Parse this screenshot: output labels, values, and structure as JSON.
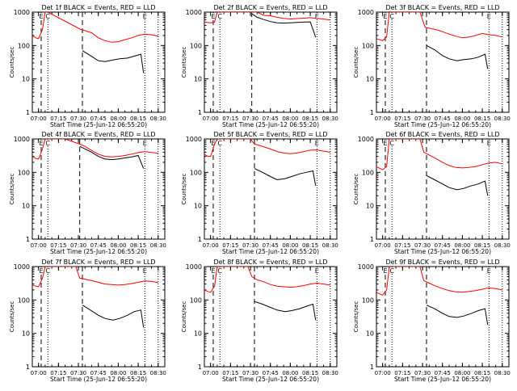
{
  "colors": {
    "events": "#000000",
    "lld": "#ff0000",
    "axis": "#000000",
    "background": "#ffffff"
  },
  "chart_data": [
    {
      "type": "line",
      "title": "Det 1f BLACK = Events, RED = LLD",
      "xlabel": "Start Time (25-Jun-12 06:55:20)",
      "ylabel": "Counts/sec",
      "yscale": "log",
      "ylim": [
        1,
        1000
      ],
      "x_ticks": [
        "07:00",
        "07:15",
        "07:30",
        "07:45",
        "08:00",
        "08:15",
        "08:30"
      ],
      "y_ticks": [
        "1",
        "10",
        "100",
        "1000"
      ],
      "markers": [
        {
          "label": "E"
        },
        {
          "label": "C"
        },
        {
          "label": "E"
        }
      ],
      "series": [
        {
          "name": "Events",
          "x": [
            "07:33",
            "07:39",
            "07:45",
            "07:50",
            "07:56",
            "08:01",
            "08:07",
            "08:12",
            "08:17",
            "08:19"
          ],
          "values": [
            70,
            50,
            35,
            33,
            37,
            40,
            42,
            48,
            55,
            15
          ]
        },
        {
          "name": "LLD",
          "x": [
            "06:55",
            "06:58",
            "07:00",
            "07:03",
            "07:05",
            "07:07",
            "07:32",
            "07:35",
            "07:40",
            "07:45",
            "07:50",
            "07:55",
            "08:00",
            "08:05",
            "08:10",
            "08:15",
            "08:20",
            "08:25",
            "08:30"
          ],
          "values": [
            200,
            170,
            160,
            300,
            1000,
            1000,
            300,
            280,
            240,
            170,
            140,
            125,
            130,
            150,
            170,
            200,
            220,
            210,
            190
          ]
        }
      ]
    },
    {
      "type": "line",
      "title": "Det 2f BLACK = Events, RED = LLD",
      "xlabel": "Start Time (25-Jun-12 06:55:20)",
      "ylabel": "Counts/sec",
      "yscale": "log",
      "ylim": [
        1,
        1000
      ],
      "x_ticks": [
        "07:00",
        "07:15",
        "07:30",
        "07:45",
        "08:00",
        "08:15",
        "08:30"
      ],
      "y_ticks": [
        "1",
        "10",
        "100",
        "1000"
      ],
      "markers": [
        {
          "label": "E"
        },
        {
          "label": "C"
        },
        {
          "label": "E"
        }
      ],
      "series": [
        {
          "name": "Events",
          "x": [
            "07:31",
            "07:35",
            "07:40",
            "07:45",
            "07:50",
            "07:55",
            "08:00",
            "08:05",
            "08:10",
            "08:15",
            "08:19"
          ],
          "values": [
            900,
            700,
            600,
            520,
            480,
            470,
            480,
            490,
            500,
            510,
            180
          ]
        },
        {
          "name": "LLD",
          "x": [
            "06:55",
            "07:00",
            "07:03",
            "07:05",
            "07:15",
            "07:25",
            "07:31",
            "07:35",
            "07:40",
            "07:45",
            "07:50",
            "07:55",
            "08:00",
            "08:05",
            "08:10",
            "08:15",
            "08:20",
            "08:25",
            "08:30"
          ],
          "values": [
            500,
            480,
            500,
            1000,
            1000,
            1000,
            1000,
            1000,
            800,
            780,
            700,
            650,
            620,
            640,
            660,
            680,
            650,
            620,
            580
          ]
        }
      ]
    },
    {
      "type": "line",
      "title": "Det 3f BLACK = Events, RED = LLD",
      "xlabel": "Start Time (25-Jun-12 06:55:20)",
      "ylabel": "Counts/sec",
      "yscale": "log",
      "ylim": [
        1,
        1000
      ],
      "x_ticks": [
        "07:00",
        "07:15",
        "07:30",
        "07:45",
        "08:00",
        "08:15",
        "08:30"
      ],
      "y_ticks": [
        "1",
        "10",
        "100",
        "1000"
      ],
      "markers": [
        {
          "label": "E"
        },
        {
          "label": "C"
        },
        {
          "label": "E"
        }
      ],
      "series": [
        {
          "name": "Events",
          "x": [
            "07:33",
            "07:39",
            "07:45",
            "07:50",
            "07:56",
            "08:01",
            "08:07",
            "08:12",
            "08:17",
            "08:19"
          ],
          "values": [
            100,
            75,
            50,
            40,
            35,
            38,
            40,
            45,
            55,
            20
          ]
        },
        {
          "name": "LLD",
          "x": [
            "06:55",
            "06:58",
            "07:00",
            "07:03",
            "07:05",
            "07:28",
            "07:32",
            "07:35",
            "07:40",
            "07:45",
            "07:50",
            "07:55",
            "08:00",
            "08:05",
            "08:10",
            "08:15",
            "08:20",
            "08:25",
            "08:30"
          ],
          "values": [
            160,
            150,
            140,
            180,
            1000,
            1000,
            350,
            330,
            300,
            260,
            220,
            190,
            170,
            180,
            200,
            230,
            210,
            200,
            180
          ]
        }
      ]
    },
    {
      "type": "line",
      "title": "Det 4f BLACK = Events, RED = LLD",
      "xlabel": "Start Time (25-Jun-12 06:55:20)",
      "ylabel": "Counts/sec",
      "yscale": "log",
      "ylim": [
        1,
        1000
      ],
      "x_ticks": [
        "07:00",
        "07:15",
        "07:30",
        "07:45",
        "08:00",
        "08:15",
        "08:30"
      ],
      "y_ticks": [
        "1",
        "10",
        "100",
        "1000"
      ],
      "markers": [
        {
          "label": "E"
        },
        {
          "label": "C"
        },
        {
          "label": "E"
        }
      ],
      "series": [
        {
          "name": "Events",
          "x": [
            "07:31",
            "07:35",
            "07:40",
            "07:45",
            "07:50",
            "07:55",
            "08:00",
            "08:05",
            "08:10",
            "08:15",
            "08:19"
          ],
          "values": [
            600,
            500,
            400,
            300,
            250,
            240,
            250,
            270,
            290,
            320,
            130
          ]
        },
        {
          "name": "LLD",
          "x": [
            "06:55",
            "06:58",
            "07:00",
            "07:03",
            "07:05",
            "07:10",
            "07:20",
            "07:31",
            "07:35",
            "07:40",
            "07:45",
            "07:50",
            "07:55",
            "08:00",
            "08:05",
            "08:10",
            "08:15",
            "08:20",
            "08:30"
          ],
          "values": [
            300,
            260,
            250,
            500,
            1000,
            1000,
            1000,
            700,
            600,
            450,
            350,
            300,
            290,
            300,
            320,
            350,
            390,
            420,
            370
          ]
        }
      ]
    },
    {
      "type": "line",
      "title": "Det 5f BLACK = Events, RED = LLD",
      "xlabel": "Start Time (25-Jun-12 06:55:20)",
      "ylabel": "Counts/sec",
      "yscale": "log",
      "ylim": [
        1,
        1000
      ],
      "x_ticks": [
        "07:00",
        "07:15",
        "07:30",
        "07:45",
        "08:00",
        "08:15",
        "08:30"
      ],
      "y_ticks": [
        "1",
        "10",
        "100",
        "1000"
      ],
      "markers": [
        {
          "label": "E"
        },
        {
          "label": "C"
        },
        {
          "label": "E"
        }
      ],
      "series": [
        {
          "name": "Events",
          "x": [
            "07:33",
            "07:39",
            "07:45",
            "07:50",
            "07:56",
            "08:01",
            "08:07",
            "08:12",
            "08:17",
            "08:19"
          ],
          "values": [
            130,
            100,
            75,
            60,
            65,
            75,
            90,
            100,
            110,
            40
          ]
        },
        {
          "name": "LLD",
          "x": [
            "06:55",
            "06:58",
            "07:00",
            "07:03",
            "07:05",
            "07:30",
            "07:33",
            "07:38",
            "07:45",
            "07:50",
            "07:55",
            "08:00",
            "08:05",
            "08:10",
            "08:15",
            "08:20",
            "08:25",
            "08:30"
          ],
          "values": [
            350,
            300,
            300,
            700,
            1000,
            1000,
            700,
            620,
            500,
            420,
            380,
            360,
            380,
            420,
            460,
            470,
            430,
            400
          ]
        }
      ]
    },
    {
      "type": "line",
      "title": "Det 6f BLACK = Events, RED = LLD",
      "xlabel": "Start Time (25-Jun-12 06:55:20)",
      "ylabel": "Counts/sec",
      "yscale": "log",
      "ylim": [
        1,
        1000
      ],
      "x_ticks": [
        "07:00",
        "07:15",
        "07:30",
        "07:45",
        "08:00",
        "08:15",
        "08:30"
      ],
      "y_ticks": [
        "1",
        "10",
        "100",
        "1000"
      ],
      "markers": [
        {
          "label": "E"
        },
        {
          "label": "C"
        },
        {
          "label": "E"
        }
      ],
      "series": [
        {
          "name": "Events",
          "x": [
            "07:33",
            "07:39",
            "07:45",
            "07:50",
            "07:56",
            "08:01",
            "08:07",
            "08:12",
            "08:17",
            "08:19"
          ],
          "values": [
            80,
            60,
            45,
            35,
            30,
            33,
            40,
            45,
            55,
            20
          ]
        },
        {
          "name": "LLD",
          "x": [
            "06:55",
            "06:58",
            "07:00",
            "07:03",
            "07:05",
            "07:28",
            "07:31",
            "07:35",
            "07:40",
            "07:45",
            "07:50",
            "07:55",
            "08:00",
            "08:05",
            "08:10",
            "08:15",
            "08:20",
            "08:25",
            "08:30"
          ],
          "values": [
            150,
            130,
            120,
            150,
            1000,
            1000,
            400,
            330,
            260,
            200,
            160,
            140,
            135,
            140,
            150,
            170,
            190,
            200,
            180
          ]
        }
      ]
    },
    {
      "type": "line",
      "title": "Det 7f BLACK = Events, RED = LLD",
      "xlabel": "Start Time (25-Jun-12 06:55:20)",
      "ylabel": "Counts/sec",
      "yscale": "log",
      "ylim": [
        1,
        1000
      ],
      "x_ticks": [
        "07:00",
        "07:15",
        "07:30",
        "07:45",
        "08:00",
        "08:15",
        "08:30"
      ],
      "y_ticks": [
        "1",
        "10",
        "100",
        "1000"
      ],
      "markers": [
        {
          "label": "E"
        },
        {
          "label": "C"
        },
        {
          "label": "E"
        }
      ],
      "series": [
        {
          "name": "Events",
          "x": [
            "07:33",
            "07:39",
            "07:45",
            "07:50",
            "07:56",
            "08:01",
            "08:07",
            "08:12",
            "08:17",
            "08:19"
          ],
          "values": [
            70,
            50,
            35,
            28,
            25,
            28,
            35,
            45,
            50,
            15
          ]
        },
        {
          "name": "LLD",
          "x": [
            "06:55",
            "06:58",
            "07:00",
            "07:03",
            "07:05",
            "07:28",
            "07:31",
            "07:35",
            "07:40",
            "07:45",
            "07:50",
            "07:55",
            "08:00",
            "08:05",
            "08:10",
            "08:15",
            "08:20",
            "08:25",
            "08:30"
          ],
          "values": [
            280,
            260,
            250,
            450,
            1000,
            1000,
            450,
            420,
            380,
            340,
            300,
            290,
            280,
            290,
            310,
            340,
            370,
            360,
            330
          ]
        }
      ]
    },
    {
      "type": "line",
      "title": "Det 8f BLACK = Events, RED = LLD",
      "xlabel": "Start Time (25-Jun-12 06:55:20)",
      "ylabel": "Counts/sec",
      "yscale": "log",
      "ylim": [
        1,
        1000
      ],
      "x_ticks": [
        "07:00",
        "07:15",
        "07:30",
        "07:45",
        "08:00",
        "08:15",
        "08:30"
      ],
      "y_ticks": [
        "1",
        "10",
        "100",
        "1000"
      ],
      "markers": [
        {
          "label": "E"
        },
        {
          "label": "C"
        },
        {
          "label": "E"
        }
      ],
      "series": [
        {
          "name": "Events",
          "x": [
            "07:33",
            "07:39",
            "07:45",
            "07:50",
            "07:56",
            "08:01",
            "08:07",
            "08:12",
            "08:17",
            "08:19"
          ],
          "values": [
            90,
            75,
            60,
            50,
            45,
            48,
            55,
            65,
            75,
            25
          ]
        },
        {
          "name": "LLD",
          "x": [
            "06:55",
            "06:58",
            "07:00",
            "07:03",
            "07:05",
            "07:28",
            "07:31",
            "07:35",
            "07:40",
            "07:45",
            "07:50",
            "07:55",
            "08:00",
            "08:05",
            "08:10",
            "08:15",
            "08:20",
            "08:25",
            "08:30"
          ],
          "values": [
            200,
            180,
            170,
            260,
            1000,
            1000,
            500,
            400,
            350,
            290,
            260,
            250,
            240,
            250,
            270,
            300,
            320,
            300,
            280
          ]
        }
      ]
    },
    {
      "type": "line",
      "title": "Det 9f BLACK = Events, RED = LLD",
      "xlabel": "Start Time (25-Jun-12 06:55:20)",
      "ylabel": "Counts/sec",
      "yscale": "log",
      "ylim": [
        1,
        1000
      ],
      "x_ticks": [
        "07:00",
        "07:15",
        "07:30",
        "07:45",
        "08:00",
        "08:15",
        "08:30"
      ],
      "y_ticks": [
        "1",
        "10",
        "100",
        "1000"
      ],
      "markers": [
        {
          "label": "E"
        },
        {
          "label": "C"
        },
        {
          "label": "E"
        }
      ],
      "series": [
        {
          "name": "Events",
          "x": [
            "07:33",
            "07:39",
            "07:45",
            "07:50",
            "07:56",
            "08:01",
            "08:07",
            "08:12",
            "08:17",
            "08:19"
          ],
          "values": [
            70,
            55,
            40,
            32,
            30,
            33,
            40,
            48,
            55,
            18
          ]
        },
        {
          "name": "LLD",
          "x": [
            "06:55",
            "06:58",
            "07:00",
            "07:03",
            "07:05",
            "07:28",
            "07:31",
            "07:35",
            "07:40",
            "07:45",
            "07:50",
            "07:55",
            "08:00",
            "08:05",
            "08:10",
            "08:15",
            "08:20",
            "08:25",
            "08:30"
          ],
          "values": [
            170,
            150,
            140,
            200,
            1000,
            1000,
            380,
            320,
            260,
            220,
            190,
            175,
            170,
            180,
            190,
            210,
            230,
            220,
            200
          ]
        }
      ]
    }
  ]
}
